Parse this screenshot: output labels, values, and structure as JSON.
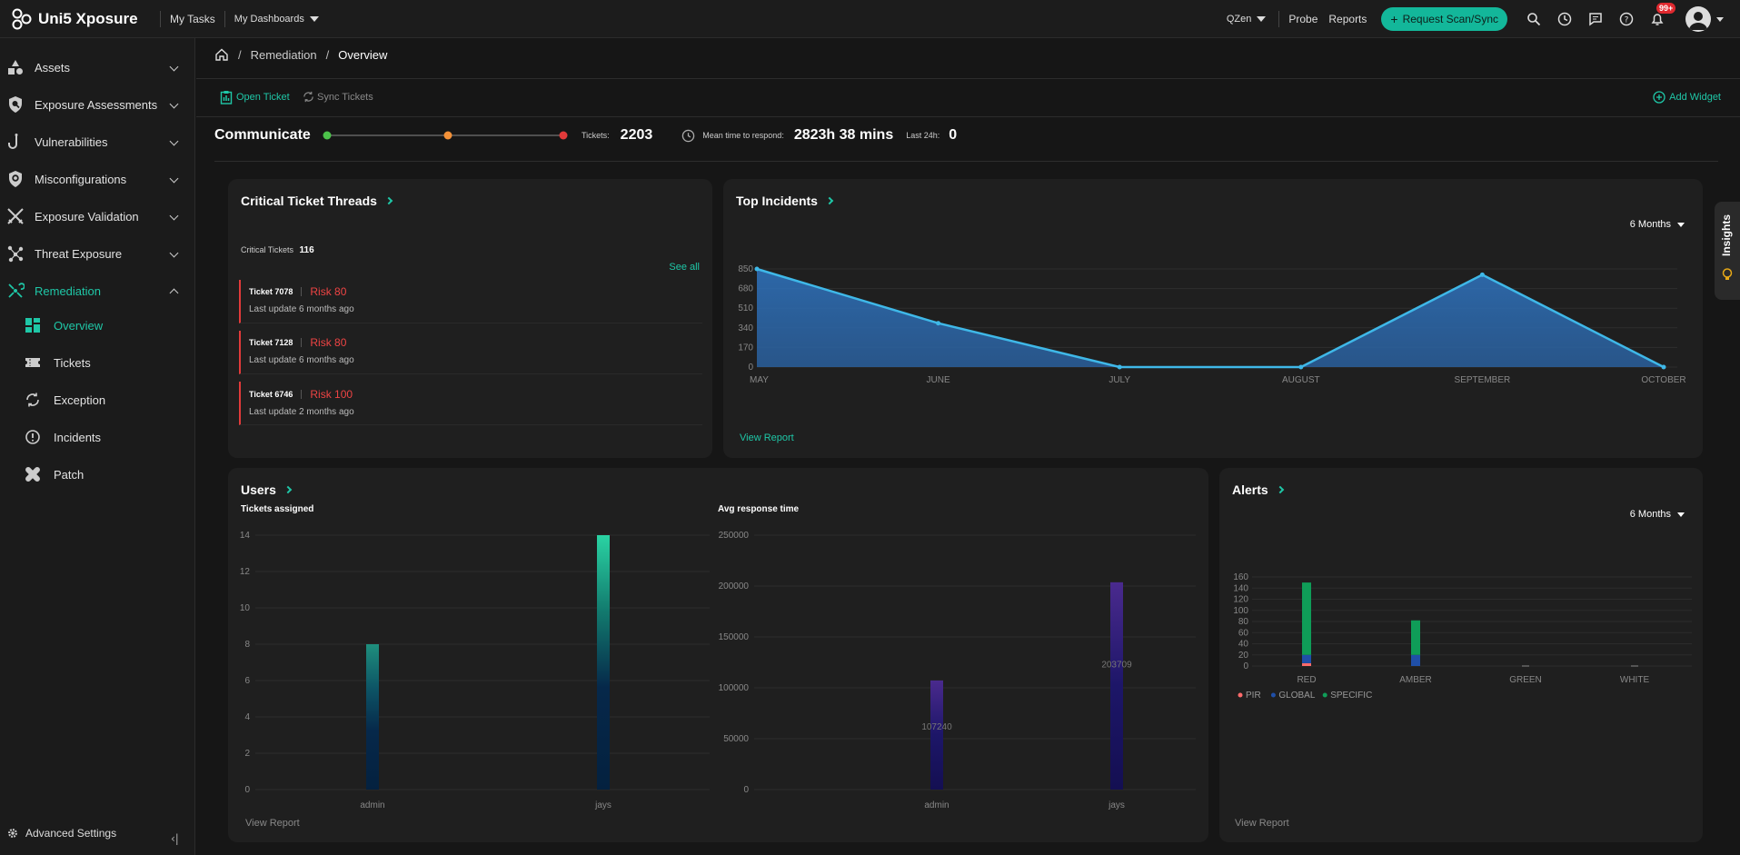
{
  "app": {
    "name": "Uni5 Xposure"
  },
  "topnav": {
    "my_tasks": "My Tasks",
    "my_dashboards": "My Dashboards",
    "tenant": "QZen",
    "probe": "Probe",
    "reports": "Reports",
    "request_scan": "Request Scan/Sync",
    "notif_count": "99+"
  },
  "sidebar": {
    "items": [
      {
        "label": "Assets",
        "icon": "shapes-icon"
      },
      {
        "label": "Exposure Assessments",
        "icon": "shield-search-icon"
      },
      {
        "label": "Vulnerabilities",
        "icon": "hook-icon"
      },
      {
        "label": "Misconfigurations",
        "icon": "shield-gear-icon"
      },
      {
        "label": "Exposure Validation",
        "icon": "swords-icon"
      },
      {
        "label": "Threat Exposure",
        "icon": "nodes-icon"
      },
      {
        "label": "Remediation",
        "icon": "remediation-icon"
      }
    ],
    "sub_items": [
      {
        "label": "Overview",
        "icon": "grid-icon"
      },
      {
        "label": "Tickets",
        "icon": "ticket-icon"
      },
      {
        "label": "Exception",
        "icon": "exception-icon"
      },
      {
        "label": "Incidents",
        "icon": "alert-circle-icon"
      },
      {
        "label": "Patch",
        "icon": "bandage-icon"
      }
    ],
    "advanced": "Advanced Settings"
  },
  "breadcrumb": {
    "section": "Remediation",
    "page": "Overview"
  },
  "actions": {
    "open_ticket": "Open Ticket",
    "sync_tickets": "Sync Tickets",
    "add_widget": "Add Widget"
  },
  "communicate": {
    "title": "Communicate",
    "tickets_label": "Tickets:",
    "tickets_value": "2203",
    "mttr_label": "Mean time to respond:",
    "mttr_value": "2823h 38 mins",
    "last24_label": "Last 24h:",
    "last24_value": "0"
  },
  "critical": {
    "title": "Critical Ticket Threads",
    "count_label": "Critical Tickets",
    "count": "116",
    "see_all": "See all",
    "tickets": [
      {
        "id": "Ticket 7078",
        "risk": "Risk 80",
        "update": "Last update 6 months ago"
      },
      {
        "id": "Ticket 7128",
        "risk": "Risk 80",
        "update": "Last update 6 months ago"
      },
      {
        "id": "Ticket 6746",
        "risk": "Risk 100",
        "update": "Last update 2 months ago"
      }
    ]
  },
  "top_incidents": {
    "title": "Top Incidents",
    "period": "6 Months",
    "view_report": "View Report"
  },
  "users": {
    "title": "Users",
    "tickets_subtitle": "Tickets assigned",
    "avg_subtitle": "Avg response time",
    "view_report": "View Report"
  },
  "alerts": {
    "title": "Alerts",
    "period": "6 Months",
    "view_report": "View Report"
  },
  "insights": {
    "label": "Insights"
  },
  "chart_data": [
    {
      "type": "area",
      "categories": [
        "MAY",
        "JUNE",
        "JULY",
        "AUGUST",
        "SEPTEMBER",
        "OCTOBER"
      ],
      "values": [
        850,
        380,
        0,
        0,
        800,
        0
      ],
      "yticks": [
        0,
        170,
        340,
        510,
        680,
        850
      ],
      "ylim": [
        0,
        850
      ],
      "color": "#3fb8e8"
    },
    {
      "type": "bar",
      "categories": [
        "admin",
        "jays"
      ],
      "values": [
        8,
        14
      ],
      "yticks": [
        0,
        2,
        4,
        6,
        8,
        10,
        12,
        14
      ],
      "ylim": [
        0,
        14
      ]
    },
    {
      "type": "bar",
      "categories": [
        "admin",
        "jays"
      ],
      "values": [
        107240,
        203709
      ],
      "value_labels": [
        "107240",
        "203709"
      ],
      "yticks": [
        0,
        50000,
        100000,
        150000,
        200000,
        250000
      ],
      "ylim": [
        0,
        250000
      ]
    },
    {
      "type": "bar",
      "categories": [
        "RED",
        "AMBER",
        "GREEN",
        "WHITE"
      ],
      "series": [
        {
          "name": "PIR",
          "color": "#ff6b6b",
          "values": [
            5,
            0,
            0,
            0
          ]
        },
        {
          "name": "GLOBAL",
          "color": "#1f4fa8",
          "values": [
            15,
            20,
            0,
            0
          ]
        },
        {
          "name": "SPECIFIC",
          "color": "#0f9d58",
          "values": [
            130,
            62,
            0,
            0
          ]
        }
      ],
      "yticks": [
        0,
        20,
        40,
        60,
        80,
        100,
        120,
        140,
        160
      ],
      "ylim": [
        0,
        160
      ],
      "legend": "bottom-left"
    }
  ]
}
